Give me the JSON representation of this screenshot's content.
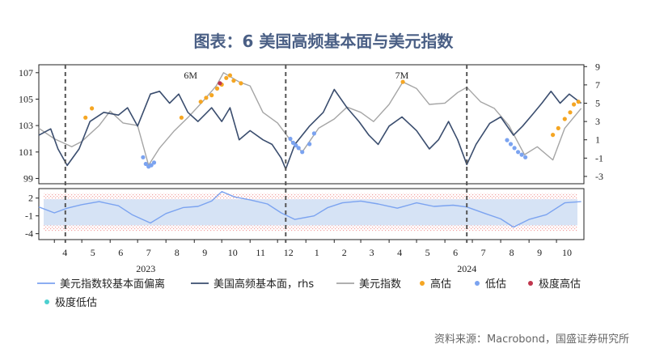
{
  "title": "图表：6 美国高频基本面与美元指数",
  "source": "资料来源：Macrobond，国盛证券研究所",
  "chart_data": {
    "type": "line",
    "x_range": [
      "2023-03-15",
      "2024-10-31"
    ],
    "month_ticks": [
      {
        "date": "2023-04-01",
        "label": "4"
      },
      {
        "date": "2023-05-01",
        "label": "5"
      },
      {
        "date": "2023-06-01",
        "label": "6"
      },
      {
        "date": "2023-07-01",
        "label": "7"
      },
      {
        "date": "2023-08-01",
        "label": "8"
      },
      {
        "date": "2023-09-01",
        "label": "9"
      },
      {
        "date": "2023-10-01",
        "label": "10"
      },
      {
        "date": "2023-11-01",
        "label": "11"
      },
      {
        "date": "2023-12-01",
        "label": "12"
      },
      {
        "date": "2024-01-01",
        "label": "1"
      },
      {
        "date": "2024-02-01",
        "label": "2"
      },
      {
        "date": "2024-03-01",
        "label": "3"
      },
      {
        "date": "2024-04-01",
        "label": "4"
      },
      {
        "date": "2024-05-01",
        "label": "5"
      },
      {
        "date": "2024-06-01",
        "label": "6"
      },
      {
        "date": "2024-07-01",
        "label": "7"
      },
      {
        "date": "2024-08-01",
        "label": "8"
      },
      {
        "date": "2024-09-01",
        "label": "9"
      },
      {
        "date": "2024-10-01",
        "label": "10"
      }
    ],
    "year_labels": [
      {
        "date": "2023-07-10",
        "label": "2023"
      },
      {
        "date": "2024-06-25",
        "label": "2024"
      }
    ],
    "dashed_lines": [
      "2023-04-13",
      "2023-12-10",
      "2024-06-25"
    ],
    "annotations": [
      {
        "date": "2023-08-28",
        "label": "6M"
      },
      {
        "date": "2024-04-15",
        "label": "7M"
      }
    ],
    "top_panel": {
      "left_axis": {
        "ylim": [
          98.6,
          107.6
        ],
        "ticks": [
          99,
          101,
          103,
          105,
          107
        ]
      },
      "right_axis": {
        "ylim": [
          -3.8,
          9.2
        ],
        "ticks": [
          -3,
          -1,
          1,
          3,
          5,
          7,
          9
        ]
      }
    },
    "bottom_panel": {
      "ylim": [
        -5.0,
        3.6
      ],
      "ticks": [
        {
          "v": 2,
          "label": "2"
        },
        {
          "v": -1,
          "label": "-1"
        },
        {
          "v": -4,
          "label": "-4"
        }
      ],
      "band_outer": [
        -3.6,
        2.8
      ],
      "band_inner": [
        -2.6,
        1.8
      ]
    },
    "series": [
      {
        "name": "美元指数较基本面偏离",
        "axis": "bottom",
        "color": "#7ba3f0",
        "points": [
          [
            "2023-03-15",
            0.5
          ],
          [
            "2023-04-01",
            -0.5
          ],
          [
            "2023-04-15",
            0.3
          ],
          [
            "2023-05-01",
            0.9
          ],
          [
            "2023-05-20",
            1.4
          ],
          [
            "2023-06-10",
            0.7
          ],
          [
            "2023-06-25",
            -0.8
          ],
          [
            "2023-07-15",
            -2.2
          ],
          [
            "2023-08-01",
            -0.6
          ],
          [
            "2023-08-20",
            0.4
          ],
          [
            "2023-09-05",
            0.6
          ],
          [
            "2023-09-20",
            1.5
          ],
          [
            "2023-10-01",
            3.1
          ],
          [
            "2023-10-15",
            2.2
          ],
          [
            "2023-11-01",
            1.7
          ],
          [
            "2023-11-20",
            1.0
          ],
          [
            "2023-12-05",
            -0.5
          ],
          [
            "2023-12-20",
            -1.6
          ],
          [
            "2024-01-10",
            -1.0
          ],
          [
            "2024-01-25",
            0.4
          ],
          [
            "2024-02-10",
            1.2
          ],
          [
            "2024-03-01",
            1.5
          ],
          [
            "2024-03-20",
            1.0
          ],
          [
            "2024-04-10",
            0.3
          ],
          [
            "2024-05-01",
            1.2
          ],
          [
            "2024-05-20",
            0.6
          ],
          [
            "2024-06-10",
            0.8
          ],
          [
            "2024-06-25",
            0.5
          ],
          [
            "2024-07-15",
            -0.6
          ],
          [
            "2024-08-01",
            -1.5
          ],
          [
            "2024-08-15",
            -2.9
          ],
          [
            "2024-09-01",
            -1.6
          ],
          [
            "2024-09-20",
            -0.8
          ],
          [
            "2024-10-10",
            1.2
          ],
          [
            "2024-10-28",
            1.4
          ]
        ]
      },
      {
        "name": "美国高频基本面，rhs",
        "axis": "right",
        "color": "#3a4d6e",
        "points": [
          [
            "2023-03-15",
            1.5
          ],
          [
            "2023-03-28",
            2.2
          ],
          [
            "2023-04-05",
            0.0
          ],
          [
            "2023-04-15",
            -1.8
          ],
          [
            "2023-04-28",
            0.0
          ],
          [
            "2023-05-10",
            3.0
          ],
          [
            "2023-05-25",
            4.0
          ],
          [
            "2023-06-10",
            3.7
          ],
          [
            "2023-06-20",
            4.5
          ],
          [
            "2023-07-01",
            2.5
          ],
          [
            "2023-07-15",
            6.0
          ],
          [
            "2023-07-25",
            6.3
          ],
          [
            "2023-08-05",
            5.0
          ],
          [
            "2023-08-15",
            6.0
          ],
          [
            "2023-08-25",
            4.0
          ],
          [
            "2023-09-05",
            3.0
          ],
          [
            "2023-09-20",
            4.5
          ],
          [
            "2023-10-01",
            3.0
          ],
          [
            "2023-10-10",
            4.5
          ],
          [
            "2023-10-20",
            1.0
          ],
          [
            "2023-11-01",
            2.0
          ],
          [
            "2023-11-15",
            1.0
          ],
          [
            "2023-11-25",
            0.5
          ],
          [
            "2023-12-05",
            -1.0
          ],
          [
            "2023-12-10",
            -2.2
          ],
          [
            "2023-12-20",
            0.5
          ],
          [
            "2024-01-05",
            2.5
          ],
          [
            "2024-01-20",
            4.0
          ],
          [
            "2024-02-01",
            6.5
          ],
          [
            "2024-02-15",
            4.5
          ],
          [
            "2024-02-28",
            3.0
          ],
          [
            "2024-03-10",
            1.5
          ],
          [
            "2024-03-20",
            0.5
          ],
          [
            "2024-04-01",
            2.5
          ],
          [
            "2024-04-15",
            3.5
          ],
          [
            "2024-05-01",
            2.0
          ],
          [
            "2024-05-15",
            0.0
          ],
          [
            "2024-05-25",
            1.0
          ],
          [
            "2024-06-05",
            3.0
          ],
          [
            "2024-06-15",
            1.0
          ],
          [
            "2024-06-25",
            -1.7
          ],
          [
            "2024-07-05",
            0.5
          ],
          [
            "2024-07-20",
            2.8
          ],
          [
            "2024-08-01",
            3.5
          ],
          [
            "2024-08-15",
            1.5
          ],
          [
            "2024-08-25",
            2.5
          ],
          [
            "2024-09-05",
            3.8
          ],
          [
            "2024-09-15",
            5.0
          ],
          [
            "2024-09-25",
            6.3
          ],
          [
            "2024-10-05",
            5.0
          ],
          [
            "2024-10-15",
            6.0
          ],
          [
            "2024-10-28",
            5.0
          ]
        ]
      },
      {
        "name": "美元指数",
        "axis": "left",
        "color": "#a5a5a5",
        "points": [
          [
            "2023-03-15",
            102.8
          ],
          [
            "2023-04-01",
            102.0
          ],
          [
            "2023-04-20",
            101.4
          ],
          [
            "2023-05-01",
            101.8
          ],
          [
            "2023-05-20",
            103.0
          ],
          [
            "2023-06-01",
            104.1
          ],
          [
            "2023-06-15",
            103.2
          ],
          [
            "2023-07-01",
            103.0
          ],
          [
            "2023-07-13",
            100.0
          ],
          [
            "2023-07-25",
            101.3
          ],
          [
            "2023-08-10",
            102.6
          ],
          [
            "2023-08-25",
            103.6
          ],
          [
            "2023-09-10",
            104.8
          ],
          [
            "2023-09-25",
            106.0
          ],
          [
            "2023-10-03",
            107.0
          ],
          [
            "2023-10-20",
            106.3
          ],
          [
            "2023-11-01",
            106.0
          ],
          [
            "2023-11-15",
            104.0
          ],
          [
            "2023-12-01",
            103.2
          ],
          [
            "2023-12-15",
            101.9
          ],
          [
            "2023-12-28",
            101.0
          ],
          [
            "2024-01-15",
            102.8
          ],
          [
            "2024-02-01",
            103.5
          ],
          [
            "2024-02-15",
            104.4
          ],
          [
            "2024-03-01",
            104.0
          ],
          [
            "2024-03-15",
            103.3
          ],
          [
            "2024-04-01",
            104.6
          ],
          [
            "2024-04-16",
            106.3
          ],
          [
            "2024-05-01",
            105.8
          ],
          [
            "2024-05-15",
            104.6
          ],
          [
            "2024-06-01",
            104.7
          ],
          [
            "2024-06-15",
            105.5
          ],
          [
            "2024-06-25",
            105.9
          ],
          [
            "2024-07-10",
            104.8
          ],
          [
            "2024-07-25",
            104.3
          ],
          [
            "2024-08-10",
            103.0
          ],
          [
            "2024-08-27",
            100.8
          ],
          [
            "2024-09-10",
            101.4
          ],
          [
            "2024-09-27",
            100.4
          ],
          [
            "2024-10-10",
            102.8
          ],
          [
            "2024-10-28",
            104.3
          ]
        ]
      },
      {
        "name": "高估",
        "type": "scatter",
        "axis": "left",
        "color": "#f5a623",
        "points": [
          [
            "2023-05-05",
            103.6
          ],
          [
            "2023-05-12",
            104.3
          ],
          [
            "2023-08-18",
            103.6
          ],
          [
            "2023-09-08",
            104.8
          ],
          [
            "2023-09-14",
            105.1
          ],
          [
            "2023-09-20",
            105.3
          ],
          [
            "2023-09-26",
            105.8
          ],
          [
            "2023-10-01",
            106.1
          ],
          [
            "2023-10-06",
            106.6
          ],
          [
            "2023-10-10",
            106.8
          ],
          [
            "2023-10-14",
            106.4
          ],
          [
            "2023-10-22",
            106.2
          ],
          [
            "2024-04-16",
            106.3
          ],
          [
            "2024-09-27",
            102.3
          ],
          [
            "2024-10-03",
            102.8
          ],
          [
            "2024-10-10",
            103.5
          ],
          [
            "2024-10-16",
            104.0
          ],
          [
            "2024-10-20",
            104.6
          ],
          [
            "2024-10-25",
            104.8
          ]
        ]
      },
      {
        "name": "低估",
        "type": "scatter",
        "axis": "left",
        "color": "#7ba3f0",
        "points": [
          [
            "2023-07-07",
            100.6
          ],
          [
            "2023-07-10",
            100.1
          ],
          [
            "2023-07-13",
            99.9
          ],
          [
            "2023-07-16",
            100.0
          ],
          [
            "2023-07-19",
            100.2
          ],
          [
            "2023-12-15",
            102.0
          ],
          [
            "2023-12-18",
            101.7
          ],
          [
            "2023-12-21",
            101.5
          ],
          [
            "2023-12-24",
            101.3
          ],
          [
            "2023-12-28",
            101.0
          ],
          [
            "2024-01-05",
            101.6
          ],
          [
            "2024-01-10",
            102.4
          ],
          [
            "2024-08-08",
            101.9
          ],
          [
            "2024-08-12",
            101.6
          ],
          [
            "2024-08-16",
            101.3
          ],
          [
            "2024-08-20",
            101.0
          ],
          [
            "2024-08-24",
            100.8
          ],
          [
            "2024-08-28",
            100.6
          ]
        ]
      },
      {
        "name": "极度高估",
        "type": "scatter",
        "axis": "left",
        "color": "#c0364d",
        "points": [
          [
            "2023-09-29",
            106.2
          ]
        ]
      },
      {
        "name": "极度低估",
        "type": "scatter",
        "axis": "left",
        "color": "#4dd0d0",
        "points": []
      }
    ]
  }
}
